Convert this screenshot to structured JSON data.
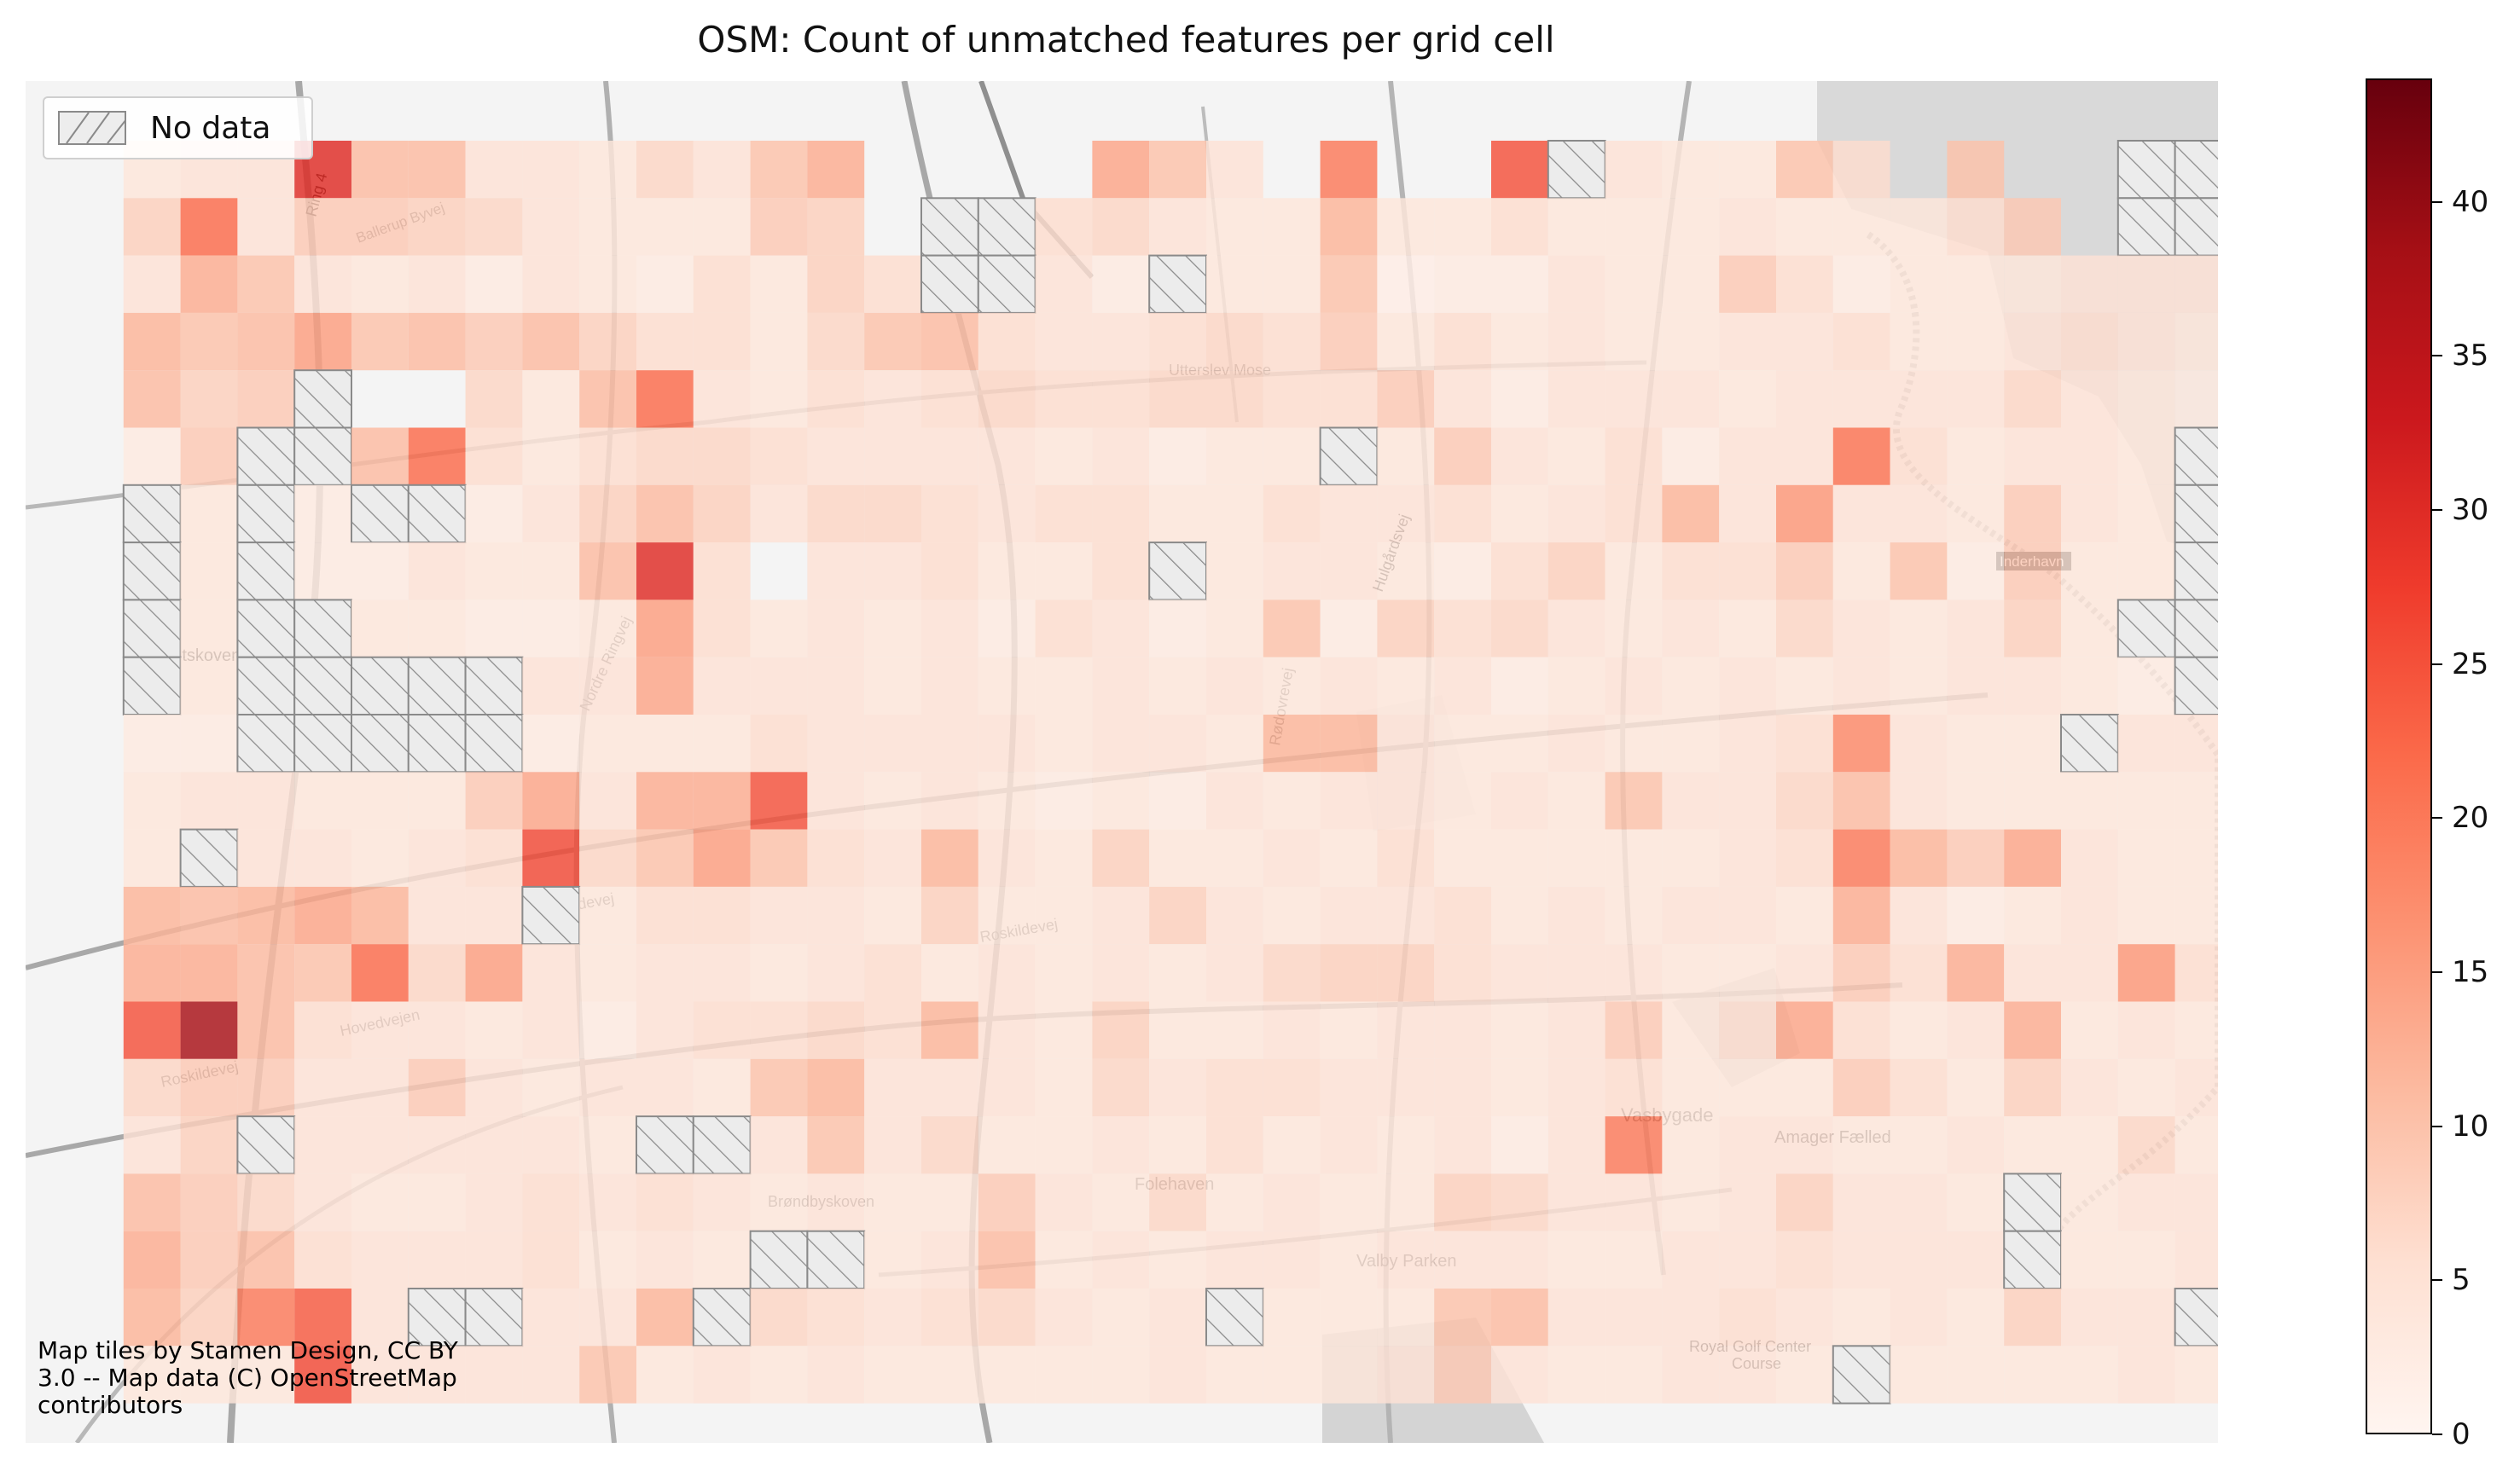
{
  "title": "OSM: Count of unmatched features per grid cell",
  "legend": {
    "label": "No data"
  },
  "attribution": [
    "Map tiles by Stamen Design, CC BY",
    "3.0 -- Map data (C) OpenStreetMap",
    "contributors"
  ],
  "colorbar": {
    "min": 0,
    "max": 44,
    "ticks": [
      0,
      5,
      10,
      15,
      20,
      25,
      30,
      35,
      40
    ]
  },
  "map_labels": [
    "Ring 4",
    "Ballerup Byvej",
    "Vestskoven",
    "Nordre Ringvej",
    "Roskildevej",
    "Hovedvejen",
    "Utterslev Mose",
    "Hulgårdsvej",
    "Rødovrevej",
    "Folehaven",
    "Vasbygade",
    "Valby Parken",
    "Amager Fælled",
    "Royal Golf Center Course",
    "Inderhavn",
    "Brøndbyskoven"
  ],
  "chart_data": {
    "type": "heatmap",
    "title": "OSM: Count of unmatched features per grid cell",
    "xlabel": "",
    "ylabel": "",
    "colormap": [
      "#fff5f0",
      "#fee0d2",
      "#fcbba1",
      "#fc9272",
      "#fb6a4a",
      "#ef3b2c",
      "#cb181d",
      "#a50f15",
      "#67000d"
    ],
    "vmin": 0,
    "vmax": 44,
    "no_data_value": -1,
    "grid_values": [
      [
        0,
        4,
        5,
        5,
        30,
        11,
        11,
        5,
        5,
        4,
        7,
        5,
        10,
        13,
        0,
        0,
        0,
        0,
        14,
        10,
        5,
        0,
        20,
        0,
        0,
        25,
        -1,
        5,
        4,
        4,
        10,
        6,
        0,
        10,
        0,
        0,
        -1,
        -1,
        -1,
        -1,
        0
      ],
      [
        0,
        8,
        22,
        5,
        9,
        9,
        8,
        7,
        5,
        4,
        4,
        4,
        9,
        8,
        0,
        -1,
        -1,
        6,
        7,
        5,
        4,
        4,
        12,
        4,
        4,
        6,
        4,
        4,
        4,
        5,
        4,
        4,
        4,
        6,
        9,
        0,
        -1,
        -1,
        5,
        -1,
        0
      ],
      [
        0,
        5,
        13,
        10,
        5,
        4,
        5,
        3,
        5,
        4,
        3,
        6,
        4,
        8,
        6,
        -1,
        -1,
        5,
        3,
        -1,
        4,
        4,
        10,
        2,
        3,
        3,
        5,
        4,
        4,
        9,
        6,
        3,
        4,
        4,
        4,
        5,
        5,
        5,
        4,
        5,
        0
      ],
      [
        0,
        12,
        10,
        11,
        15,
        10,
        11,
        9,
        11,
        8,
        6,
        6,
        4,
        7,
        10,
        11,
        6,
        5,
        5,
        6,
        7,
        6,
        9,
        4,
        6,
        4,
        5,
        4,
        4,
        5,
        5,
        6,
        4,
        4,
        5,
        6,
        5,
        4,
        4,
        4,
        0
      ],
      [
        0,
        11,
        8,
        9,
        -1,
        0,
        0,
        7,
        4,
        11,
        22,
        5,
        4,
        6,
        5,
        6,
        7,
        6,
        6,
        7,
        7,
        6,
        6,
        9,
        5,
        3,
        5,
        5,
        5,
        4,
        5,
        5,
        5,
        5,
        7,
        5,
        4,
        3,
        4,
        -1,
        0
      ],
      [
        0,
        3,
        9,
        -1,
        -1,
        11,
        22,
        6,
        4,
        6,
        7,
        7,
        6,
        5,
        5,
        5,
        5,
        4,
        5,
        3,
        4,
        4,
        -1,
        4,
        9,
        5,
        4,
        6,
        3,
        5,
        5,
        21,
        6,
        4,
        5,
        5,
        4,
        -1,
        -1,
        -1,
        0
      ],
      [
        0,
        -1,
        4,
        -1,
        3,
        -1,
        -1,
        3,
        5,
        8,
        11,
        8,
        5,
        7,
        7,
        6,
        5,
        6,
        6,
        4,
        4,
        6,
        5,
        5,
        6,
        4,
        5,
        6,
        12,
        5,
        16,
        5,
        5,
        4,
        9,
        5,
        4,
        -1,
        -1,
        -1,
        0
      ],
      [
        0,
        -1,
        4,
        -1,
        3,
        3,
        5,
        4,
        4,
        11,
        30,
        6,
        0,
        5,
        5,
        6,
        4,
        4,
        6,
        -1,
        4,
        5,
        5,
        4,
        3,
        6,
        8,
        4,
        6,
        6,
        9,
        4,
        10,
        3,
        9,
        4,
        4,
        -1,
        -1,
        -1,
        0
      ],
      [
        0,
        -1,
        4,
        -1,
        -1,
        4,
        4,
        3,
        3,
        4,
        15,
        6,
        4,
        5,
        4,
        5,
        3,
        6,
        5,
        3,
        4,
        10,
        3,
        8,
        6,
        7,
        5,
        4,
        5,
        4,
        7,
        5,
        4,
        5,
        8,
        4,
        -1,
        -1,
        -1,
        0
      ],
      [
        0,
        -1,
        4,
        -1,
        -1,
        -1,
        -1,
        -1,
        5,
        5,
        14,
        5,
        5,
        5,
        4,
        5,
        4,
        4,
        5,
        4,
        5,
        4,
        5,
        4,
        5,
        3,
        4,
        5,
        4,
        5,
        4,
        5,
        4,
        5,
        5,
        4,
        3,
        -1,
        7,
        0
      ],
      [
        0,
        3,
        3,
        -1,
        -1,
        -1,
        -1,
        -1,
        3,
        4,
        4,
        4,
        6,
        5,
        5,
        5,
        5,
        4,
        5,
        5,
        4,
        12,
        12,
        5,
        4,
        4,
        5,
        4,
        4,
        5,
        6,
        18,
        5,
        4,
        4,
        -1,
        5,
        5,
        0
      ],
      [
        0,
        4,
        5,
        5,
        4,
        4,
        4,
        9,
        14,
        5,
        13,
        13,
        25,
        5,
        4,
        5,
        4,
        3,
        4,
        3,
        5,
        4,
        5,
        5,
        4,
        5,
        4,
        10,
        5,
        5,
        7,
        11,
        5,
        4,
        4,
        4,
        4,
        4,
        0
      ],
      [
        0,
        4,
        -1,
        5,
        5,
        4,
        5,
        6,
        26,
        7,
        10,
        15,
        10,
        6,
        5,
        12,
        5,
        4,
        8,
        4,
        4,
        5,
        4,
        6,
        4,
        4,
        4,
        4,
        4,
        5,
        6,
        20,
        12,
        9,
        14,
        5,
        4,
        4,
        0
      ],
      [
        0,
        12,
        11,
        12,
        14,
        12,
        5,
        5,
        -1,
        4,
        6,
        6,
        5,
        5,
        4,
        8,
        4,
        4,
        5,
        8,
        5,
        4,
        5,
        5,
        6,
        4,
        5,
        4,
        5,
        5,
        4,
        13,
        5,
        3,
        4,
        5,
        4,
        4,
        0
      ],
      [
        0,
        13,
        13,
        11,
        10,
        22,
        7,
        15,
        5,
        4,
        5,
        5,
        4,
        5,
        6,
        4,
        5,
        4,
        5,
        4,
        5,
        7,
        8,
        8,
        6,
        5,
        5,
        5,
        4,
        4,
        5,
        9,
        6,
        13,
        5,
        5,
        16,
        6,
        0
      ],
      [
        0,
        25,
        38,
        11,
        6,
        5,
        5,
        4,
        5,
        3,
        5,
        6,
        6,
        7,
        6,
        12,
        5,
        4,
        8,
        4,
        4,
        5,
        4,
        5,
        5,
        4,
        5,
        9,
        4,
        6,
        14,
        6,
        4,
        5,
        13,
        4,
        5,
        4,
        0
      ],
      [
        0,
        7,
        9,
        9,
        5,
        5,
        9,
        5,
        4,
        5,
        5,
        4,
        10,
        12,
        5,
        5,
        5,
        4,
        7,
        5,
        6,
        6,
        5,
        5,
        5,
        4,
        5,
        6,
        4,
        4,
        4,
        9,
        6,
        4,
        8,
        5,
        4,
        5,
        0
      ],
      [
        0,
        5,
        8,
        -1,
        5,
        5,
        5,
        5,
        5,
        4,
        -1,
        -1,
        5,
        10,
        5,
        7,
        4,
        4,
        5,
        4,
        6,
        4,
        5,
        4,
        5,
        3,
        5,
        20,
        4,
        5,
        5,
        4,
        4,
        5,
        4,
        4,
        7,
        4,
        0
      ],
      [
        0,
        11,
        9,
        7,
        5,
        4,
        4,
        5,
        6,
        5,
        6,
        5,
        4,
        5,
        4,
        4,
        9,
        5,
        4,
        7,
        4,
        5,
        4,
        4,
        8,
        7,
        5,
        5,
        4,
        5,
        8,
        5,
        5,
        4,
        -1,
        4,
        5,
        5,
        0
      ],
      [
        0,
        13,
        9,
        11,
        6,
        5,
        5,
        5,
        6,
        4,
        5,
        4,
        -1,
        -1,
        4,
        5,
        11,
        4,
        5,
        4,
        5,
        5,
        4,
        5,
        5,
        5,
        4,
        4,
        5,
        5,
        6,
        5,
        5,
        5,
        -1,
        4,
        4,
        5,
        0
      ],
      [
        0,
        12,
        8,
        20,
        24,
        5,
        -1,
        -1,
        5,
        5,
        12,
        -1,
        7,
        6,
        5,
        6,
        7,
        5,
        4,
        5,
        -1,
        4,
        4,
        4,
        10,
        11,
        5,
        5,
        5,
        6,
        5,
        4,
        5,
        4,
        8,
        5,
        5,
        -1,
        0
      ],
      [
        0,
        4,
        4,
        4,
        26,
        5,
        5,
        5,
        5,
        10,
        4,
        5,
        4,
        5,
        4,
        4,
        4,
        4,
        4,
        5,
        4,
        4,
        4,
        5,
        9,
        5,
        4,
        4,
        5,
        5,
        4,
        -1,
        4,
        4,
        4,
        4,
        5,
        4,
        0
      ]
    ]
  }
}
